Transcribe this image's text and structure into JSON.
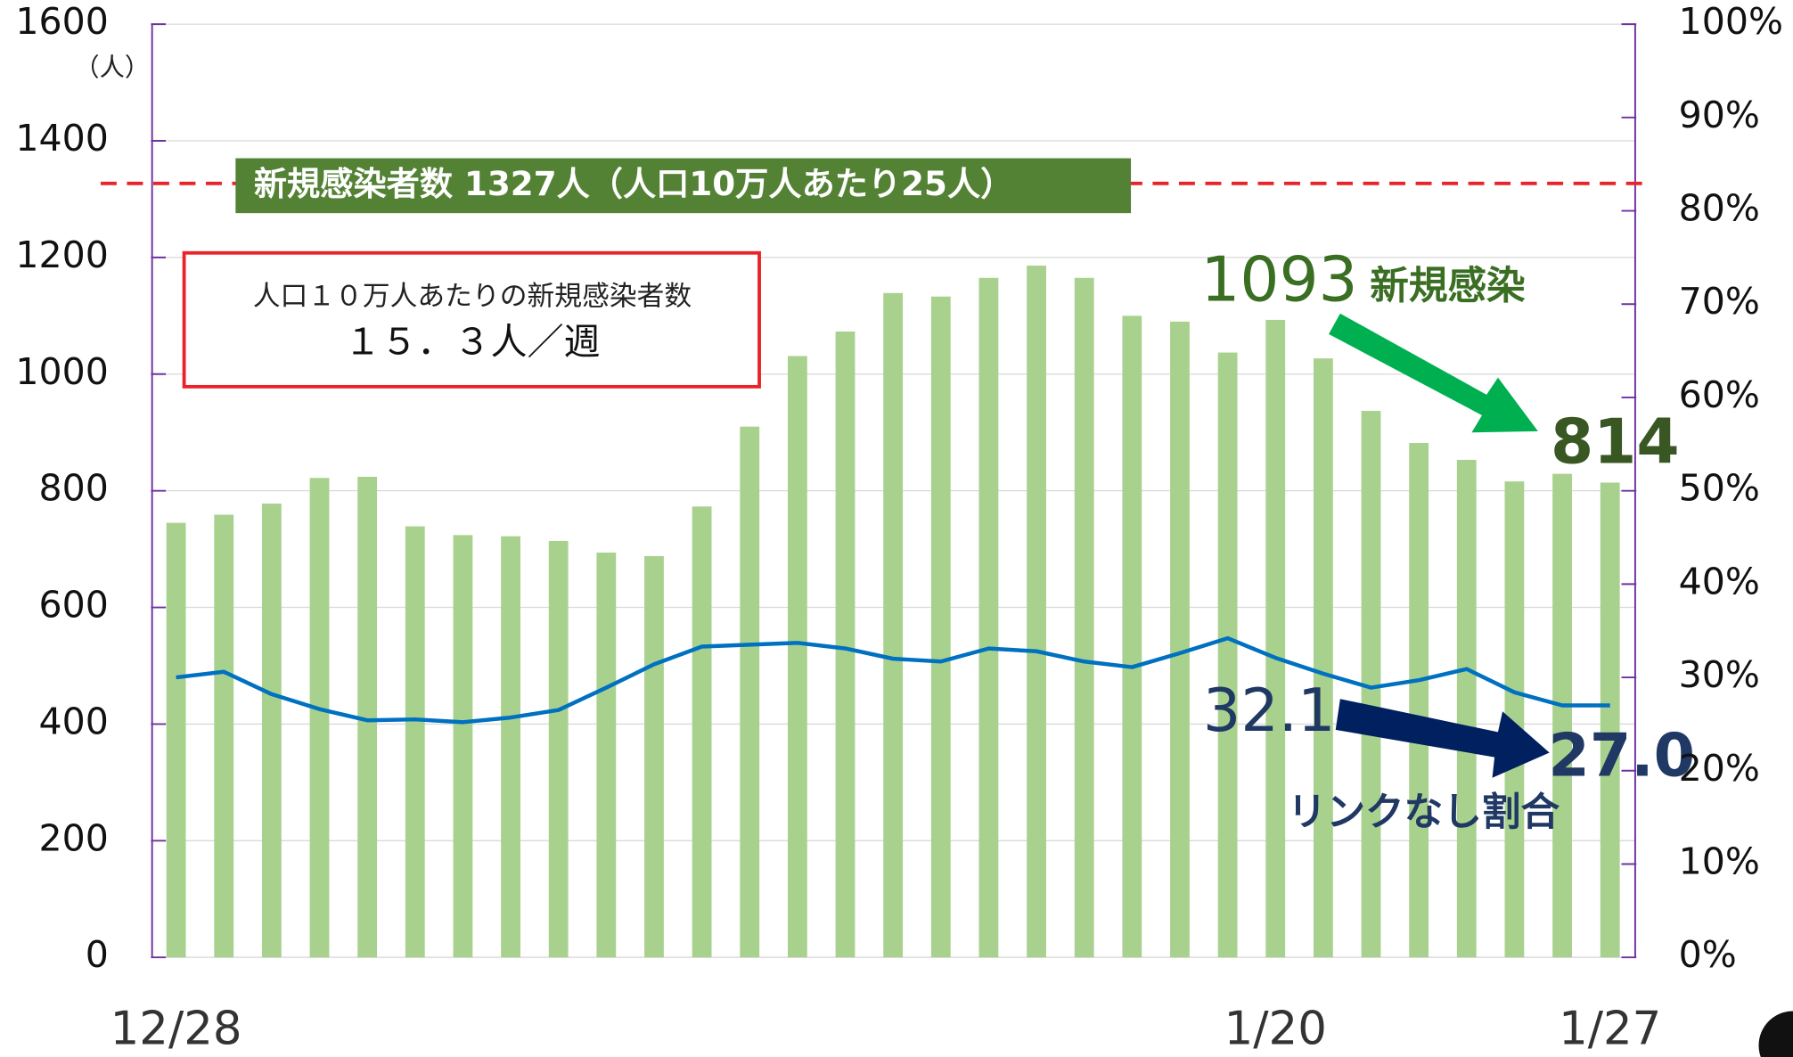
{
  "chart_data": {
    "type": "bar_line",
    "y_unit": "（人）",
    "categories": [
      "12/28",
      null,
      null,
      null,
      null,
      null,
      null,
      null,
      null,
      null,
      null,
      null,
      null,
      null,
      null,
      null,
      null,
      null,
      null,
      null,
      null,
      null,
      null,
      "1/20",
      null,
      null,
      null,
      null,
      null,
      null,
      "1/27"
    ],
    "series": [
      {
        "color": "#a9d18e",
        "values": [
          745,
          759,
          778,
          822,
          824,
          739,
          724,
          722,
          714,
          694,
          688,
          773,
          910,
          1031,
          1073,
          1139,
          1133,
          1165,
          1186,
          1165,
          1100,
          1090,
          1037,
          1093,
          1027,
          937,
          882,
          853,
          816,
          829,
          814
        ]
      },
      {
        "color": "#0070c0",
        "axis": "y2",
        "values": [
          30.0,
          30.6,
          28.2,
          26.6,
          25.4,
          25.5,
          25.2,
          25.7,
          26.5,
          28.9,
          31.4,
          33.3,
          33.5,
          33.7,
          33.1,
          32.0,
          31.7,
          33.1,
          32.8,
          31.7,
          31.1,
          32.6,
          34.2,
          32.1,
          30.4,
          28.9,
          29.7,
          30.9,
          28.4,
          27.0,
          27.0
        ]
      }
    ],
    "ylim": [
      0,
      1600
    ],
    "yticks": [
      0,
      200,
      400,
      600,
      800,
      1000,
      1200,
      1400,
      1600
    ],
    "y2lim": [
      0,
      100
    ],
    "y2ticks": [
      {
        "value": 0,
        "label": "0%"
      },
      {
        "value": 10,
        "label": "10%"
      },
      {
        "value": 20,
        "label": "20%"
      },
      {
        "value": 30,
        "label": "30%"
      },
      {
        "value": 40,
        "label": "40%"
      },
      {
        "value": 50,
        "label": "50%"
      },
      {
        "value": 60,
        "label": "60%"
      },
      {
        "value": 70,
        "label": "70%"
      },
      {
        "value": 80,
        "label": "80%"
      },
      {
        "value": 90,
        "label": "90%"
      },
      {
        "value": 100,
        "label": "100%"
      }
    ],
    "grid": true,
    "reference_line": {
      "value": 1327,
      "color": "#e8242a",
      "label": "新規感染者数 1327人（人口10万人あたり25人）"
    },
    "info_box": {
      "line1": "人口１０万人あたりの新規感染者数",
      "line2": "１５．３人／週"
    },
    "annotations": {
      "cases_start": "1093",
      "cases_label": "新規感染",
      "cases_end": "814",
      "ratio_start": "32.1",
      "ratio_end": "27.0",
      "ratio_label": "リンクなし割合"
    }
  }
}
